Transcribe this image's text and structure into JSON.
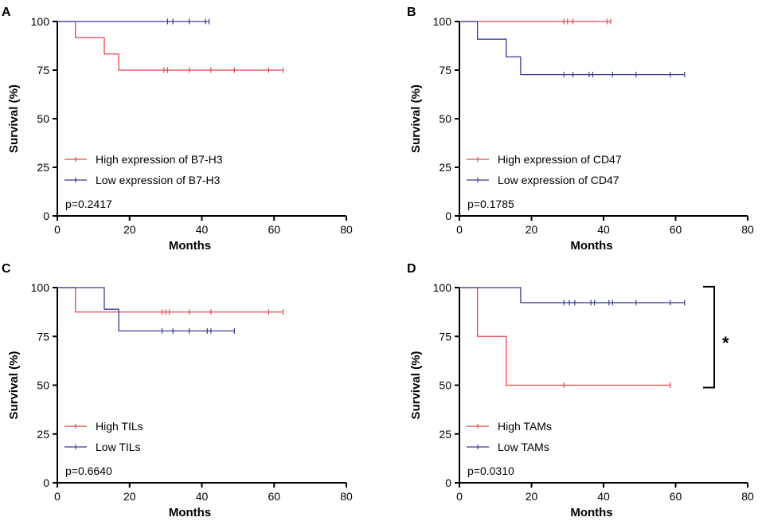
{
  "colors": {
    "high": "#e8464b",
    "low": "#3a3c92",
    "axis": "#000000"
  },
  "chart_data": [
    {
      "panel": "A",
      "type": "line",
      "step": true,
      "ylabel": "Survival (%)",
      "xlabel": "Months",
      "xlim": [
        0,
        80
      ],
      "ylim": [
        0,
        100
      ],
      "xticks": [
        "0",
        "20",
        "40",
        "60",
        "80"
      ],
      "yticks": [
        "0",
        "25",
        "50",
        "75",
        "100"
      ],
      "series": [
        {
          "name": "High expression of B7-H3",
          "group": "high",
          "x": [
            0,
            5,
            13,
            17,
            62.5
          ],
          "y": [
            100,
            91.7,
            83.3,
            75,
            75
          ],
          "censored": [
            [
              29.5,
              75
            ],
            [
              30.5,
              75
            ],
            [
              36.5,
              75
            ],
            [
              42.5,
              75
            ],
            [
              49,
              75
            ],
            [
              58.5,
              75
            ],
            [
              62.5,
              75
            ]
          ]
        },
        {
          "name": "Low expression of B7-H3",
          "group": "low",
          "x": [
            0,
            42
          ],
          "y": [
            100,
            100
          ],
          "censored": [
            [
              30.5,
              100
            ],
            [
              32,
              100
            ],
            [
              36.5,
              100
            ],
            [
              41,
              100
            ],
            [
              42,
              100
            ]
          ]
        }
      ],
      "pvalue": "p=0.2417",
      "significance": null
    },
    {
      "panel": "B",
      "type": "line",
      "step": true,
      "ylabel": "Survival (%)",
      "xlabel": "Months",
      "xlim": [
        0,
        80
      ],
      "ylim": [
        0,
        100
      ],
      "xticks": [
        "0",
        "20",
        "40",
        "60",
        "80"
      ],
      "yticks": [
        "0",
        "25",
        "50",
        "75",
        "100"
      ],
      "series": [
        {
          "name": "High expression of CD47",
          "group": "high",
          "x": [
            0,
            42
          ],
          "y": [
            100,
            100
          ],
          "censored": [
            [
              29,
              100
            ],
            [
              30,
              100
            ],
            [
              31.5,
              100
            ],
            [
              41,
              100
            ],
            [
              42,
              100
            ]
          ]
        },
        {
          "name": "Low expression of CD47",
          "group": "low",
          "x": [
            0,
            5,
            13,
            17,
            62.5
          ],
          "y": [
            100,
            90.9,
            81.8,
            72.7,
            72.7
          ],
          "censored": [
            [
              29,
              72.7
            ],
            [
              31.5,
              72.7
            ],
            [
              36,
              72.7
            ],
            [
              37,
              72.7
            ],
            [
              42.5,
              72.7
            ],
            [
              49,
              72.7
            ],
            [
              58.5,
              72.7
            ],
            [
              62.5,
              72.7
            ]
          ]
        }
      ],
      "pvalue": "p=0.1785",
      "significance": null
    },
    {
      "panel": "C",
      "type": "line",
      "step": true,
      "ylabel": "Survival (%)",
      "xlabel": "Months",
      "xlim": [
        0,
        80
      ],
      "ylim": [
        0,
        100
      ],
      "xticks": [
        "0",
        "20",
        "40",
        "60",
        "80"
      ],
      "yticks": [
        "0",
        "25",
        "50",
        "75",
        "100"
      ],
      "series": [
        {
          "name": "High TILs",
          "group": "high",
          "x": [
            0,
            5,
            62.5
          ],
          "y": [
            100,
            87.5,
            87.5
          ],
          "censored": [
            [
              29,
              87.5
            ],
            [
              30,
              87.5
            ],
            [
              31,
              87.5
            ],
            [
              36.5,
              87.5
            ],
            [
              42.5,
              87.5
            ],
            [
              58.5,
              87.5
            ],
            [
              62.5,
              87.5
            ]
          ]
        },
        {
          "name": "Low TILs",
          "group": "low",
          "x": [
            0,
            13,
            17,
            49
          ],
          "y": [
            100,
            88.9,
            77.8,
            77.8
          ],
          "censored": [
            [
              29,
              77.8
            ],
            [
              32,
              77.8
            ],
            [
              36.5,
              77.8
            ],
            [
              41.5,
              77.8
            ],
            [
              42.5,
              77.8
            ],
            [
              49,
              77.8
            ]
          ]
        }
      ],
      "pvalue": "p=0.6640",
      "significance": null
    },
    {
      "panel": "D",
      "type": "line",
      "step": true,
      "ylabel": "Survival (%)",
      "xlabel": "Months",
      "xlim": [
        0,
        80
      ],
      "ylim": [
        0,
        100
      ],
      "xticks": [
        "0",
        "20",
        "40",
        "60",
        "80"
      ],
      "yticks": [
        "0",
        "25",
        "50",
        "75",
        "100"
      ],
      "series": [
        {
          "name": "High TAMs",
          "group": "high",
          "x": [
            0,
            5,
            13,
            58.5
          ],
          "y": [
            100,
            75,
            50,
            50
          ],
          "censored": [
            [
              29,
              50
            ],
            [
              58.5,
              50
            ]
          ]
        },
        {
          "name": "Low TAMs",
          "group": "low",
          "x": [
            0,
            17,
            62.5
          ],
          "y": [
            100,
            92.3,
            92.3
          ],
          "censored": [
            [
              29,
              92.3
            ],
            [
              30.5,
              92.3
            ],
            [
              32,
              92.3
            ],
            [
              36.5,
              92.3
            ],
            [
              37.5,
              92.3
            ],
            [
              41.5,
              92.3
            ],
            [
              42.5,
              92.3
            ],
            [
              49,
              92.3
            ],
            [
              58.5,
              92.3
            ],
            [
              62.5,
              92.3
            ]
          ]
        }
      ],
      "pvalue": "p=0.0310",
      "significance": {
        "label": "*",
        "between": [
          92.3,
          50
        ]
      }
    }
  ]
}
